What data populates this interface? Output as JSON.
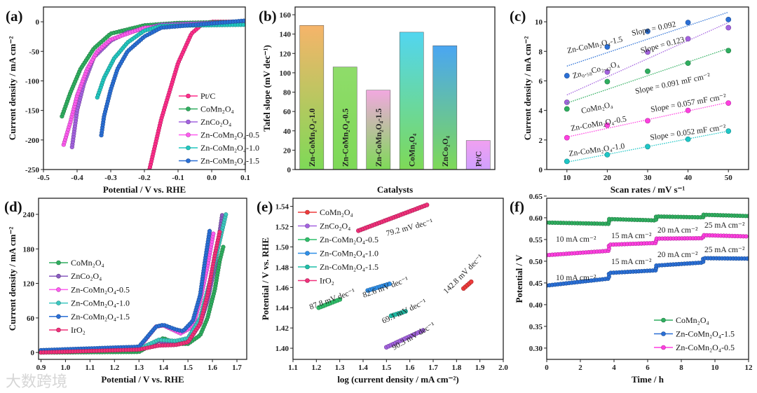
{
  "watermark": "大数跨境",
  "chart_data": [
    {
      "panel": "(a)",
      "type": "line",
      "xlabel": "Potential /  V vs. RHE",
      "ylabel": "Current density / mA cm⁻²",
      "xlim": [
        -0.5,
        0.1
      ],
      "ylim": [
        -250,
        25
      ],
      "xticks": [
        "-0.5",
        "-0.4",
        "-0.3",
        "-0.2",
        "-0.1",
        "0.0",
        "0.1"
      ],
      "yticks": [
        "-250",
        "-200",
        "-150",
        "-100",
        "-50",
        "0"
      ],
      "legend": "bottom-right",
      "series": [
        {
          "name": "Pt/C",
          "color": "#ff2d8a",
          "points": [
            [
              -0.185,
              -250
            ],
            [
              -0.15,
              -165
            ],
            [
              -0.1,
              -70
            ],
            [
              -0.06,
              -20
            ],
            [
              -0.03,
              -5
            ],
            [
              0,
              0
            ],
            [
              0.1,
              0
            ]
          ]
        },
        {
          "name": "CoMn₂O₄",
          "color": "#2fae5f",
          "points": [
            [
              -0.445,
              -160
            ],
            [
              -0.42,
              -120
            ],
            [
              -0.39,
              -80
            ],
            [
              -0.35,
              -45
            ],
            [
              -0.3,
              -20
            ],
            [
              -0.2,
              -6
            ],
            [
              -0.1,
              -2
            ],
            [
              0.1,
              0
            ]
          ]
        },
        {
          "name": "ZnCo₂O₄",
          "color": "#a463e0",
          "points": [
            [
              -0.415,
              -212
            ],
            [
              -0.4,
              -150
            ],
            [
              -0.38,
              -105
            ],
            [
              -0.35,
              -60
            ],
            [
              -0.3,
              -32
            ],
            [
              -0.25,
              -18
            ],
            [
              -0.15,
              -5
            ],
            [
              0.1,
              0
            ]
          ]
        },
        {
          "name": "Zn-CoMn₂O₄-0.5",
          "color": "#ff5cf0",
          "points": [
            [
              -0.44,
              -208
            ],
            [
              -0.42,
              -170
            ],
            [
              -0.4,
              -125
            ],
            [
              -0.37,
              -80
            ],
            [
              -0.34,
              -50
            ],
            [
              -0.3,
              -30
            ],
            [
              -0.2,
              -10
            ],
            [
              0.1,
              -1
            ]
          ]
        },
        {
          "name": "Zn-CoMn₂O₄-1.0",
          "color": "#22c7c0",
          "points": [
            [
              -0.34,
              -128
            ],
            [
              -0.32,
              -95
            ],
            [
              -0.29,
              -62
            ],
            [
              -0.25,
              -35
            ],
            [
              -0.2,
              -15
            ],
            [
              -0.15,
              -7
            ],
            [
              0.1,
              -5
            ]
          ]
        },
        {
          "name": "Zn-CoMn₂O₄-1.5",
          "color": "#2a6fd6",
          "points": [
            [
              -0.328,
              -192
            ],
            [
              -0.32,
              -160
            ],
            [
              -0.3,
              -115
            ],
            [
              -0.28,
              -80
            ],
            [
              -0.25,
              -50
            ],
            [
              -0.2,
              -25
            ],
            [
              -0.15,
              -10
            ],
            [
              0.1,
              2
            ]
          ]
        }
      ]
    },
    {
      "panel": "(b)",
      "type": "bar",
      "xlabel": "Catalysts",
      "ylabel": "Tafel slope (mV dec⁻¹)",
      "ylim": [
        0,
        168
      ],
      "yticks": [
        "0",
        "20",
        "40",
        "60",
        "80",
        "100",
        "120",
        "140",
        "160"
      ],
      "categories": [
        "Zn-CoMn₂O₄-1.0",
        "Zn-CoMn₂O₄-0.5",
        "Zn-CoMn₂O₄-1.5",
        "CoMn₂O₄",
        "ZnCo₂O₄",
        "Pt/C"
      ],
      "values": [
        149,
        106,
        82,
        142,
        128,
        30
      ],
      "colors": [
        "#f6b46a",
        "#8fdc6a",
        "#f2a8e0",
        "#52d6f0",
        "#4aa6f2",
        "#f0a0f0"
      ],
      "base_color": "#7ed957"
    },
    {
      "panel": "(c)",
      "type": "scatter",
      "xlabel": "Scan rates /  mV s⁻¹",
      "ylabel": "Current density / mA cm⁻²",
      "xlim": [
        5,
        55
      ],
      "ylim": [
        0,
        11
      ],
      "xticks": [
        "10",
        "20",
        "30",
        "40",
        "50"
      ],
      "yticks": [
        "0",
        "2",
        "4",
        "6",
        "8",
        "10"
      ],
      "x": [
        10,
        20,
        30,
        40,
        50
      ],
      "series": [
        {
          "name": "Zn-CoMn₂O₄-1.5",
          "color": "#2a6fd6",
          "values": [
            6.35,
            8.3,
            9.35,
            9.95,
            10.15
          ],
          "fit": [
            7.0,
            10.65
          ],
          "slope": "Slope = 0.092"
        },
        {
          "name": "Zn₀.₅₈Co₂.₄₂O₄",
          "color": "#a463e0",
          "values": [
            4.55,
            6.6,
            7.95,
            8.85,
            9.6
          ],
          "fit": [
            5.05,
            9.95
          ],
          "slope": "Slope = 0.123"
        },
        {
          "name": "CoMn₂O₄",
          "color": "#2fae5f",
          "values": [
            4.1,
            5.95,
            6.65,
            7.2,
            8.05
          ],
          "fit": [
            4.5,
            8.2
          ],
          "slope": "Slope = 0.091 mF cm⁻²"
        },
        {
          "name": "Zn-CoMn₂O₄-0.5",
          "color": "#ff3fe0",
          "values": [
            2.15,
            3.0,
            3.3,
            4.0,
            4.5
          ],
          "fit": [
            2.2,
            4.55
          ],
          "slope": "Slope = 0.057 mF cm⁻²"
        },
        {
          "name": "Zn-CoMn₂O₄-1.0",
          "color": "#1fc6c6",
          "values": [
            0.55,
            1.0,
            1.55,
            2.05,
            2.6
          ],
          "fit": [
            0.5,
            2.6
          ],
          "slope": "Slope = 0.052 mF cm⁻²"
        }
      ]
    },
    {
      "panel": "(d)",
      "type": "line",
      "xlabel": "Potential / V vs. RHE",
      "ylabel": "Current density / mA cm⁻²",
      "xlim": [
        0.89,
        1.74
      ],
      "ylim": [
        -12,
        268
      ],
      "xticks": [
        "0.9",
        "1.0",
        "1.1",
        "1.2",
        "1.3",
        "1.4",
        "1.5",
        "1.6",
        "1.7"
      ],
      "yticks": [
        "0",
        "60",
        "120",
        "180",
        "240"
      ],
      "legend": "left",
      "series": [
        {
          "name": "CoMn₂O₄",
          "color": "#2fae5f",
          "points": [
            [
              0.9,
              0
            ],
            [
              1.3,
              1
            ],
            [
              1.38,
              20
            ],
            [
              1.4,
              25
            ],
            [
              1.45,
              15
            ],
            [
              1.5,
              15
            ],
            [
              1.55,
              30
            ],
            [
              1.58,
              60
            ],
            [
              1.61,
              110
            ],
            [
              1.63,
              160
            ],
            [
              1.645,
              185
            ]
          ]
        },
        {
          "name": "ZnCo₂O₄",
          "color": "#8a5cc0",
          "points": [
            [
              0.9,
              2
            ],
            [
              1.3,
              5
            ],
            [
              1.38,
              20
            ],
            [
              1.42,
              15
            ],
            [
              1.5,
              18
            ],
            [
              1.55,
              50
            ],
            [
              1.58,
              90
            ],
            [
              1.61,
              150
            ],
            [
              1.64,
              240
            ]
          ]
        },
        {
          "name": "Zn-CoMn₂O₄-0.5",
          "color": "#ff5cf0",
          "points": [
            [
              0.9,
              3
            ],
            [
              1.3,
              8
            ],
            [
              1.37,
              45
            ],
            [
              1.4,
              47
            ],
            [
              1.47,
              33
            ],
            [
              1.52,
              45
            ],
            [
              1.55,
              90
            ],
            [
              1.58,
              150
            ],
            [
              1.605,
              210
            ]
          ]
        },
        {
          "name": "Zn-CoMn₂O₄-1.0",
          "color": "#3cc8c0",
          "points": [
            [
              0.9,
              2
            ],
            [
              1.3,
              6
            ],
            [
              1.38,
              22
            ],
            [
              1.45,
              20
            ],
            [
              1.5,
              25
            ],
            [
              1.55,
              60
            ],
            [
              1.6,
              140
            ],
            [
              1.655,
              240
            ]
          ]
        },
        {
          "name": "Zn-CoMn₂O₄-1.5",
          "color": "#2a6fd6",
          "points": [
            [
              0.9,
              4
            ],
            [
              1.3,
              10
            ],
            [
              1.37,
              45
            ],
            [
              1.4,
              48
            ],
            [
              1.45,
              40
            ],
            [
              1.48,
              37
            ],
            [
              1.52,
              55
            ],
            [
              1.55,
              100
            ],
            [
              1.57,
              160
            ],
            [
              1.59,
              215
            ]
          ]
        },
        {
          "name": "IrO₂",
          "color": "#f0307a",
          "points": [
            [
              0.9,
              0
            ],
            [
              1.3,
              5
            ],
            [
              1.38,
              12
            ],
            [
              1.45,
              13
            ],
            [
              1.5,
              18
            ],
            [
              1.55,
              50
            ],
            [
              1.58,
              100
            ],
            [
              1.61,
              170
            ],
            [
              1.63,
              210
            ]
          ]
        }
      ]
    },
    {
      "panel": "(e)",
      "type": "line",
      "xlabel": "log (current density / mA cm⁻²)",
      "ylabel": "Potential / V vs. RHE",
      "xlim": [
        1.1,
        2.0
      ],
      "ylim": [
        1.389,
        1.548
      ],
      "xticks": [
        "1.1",
        "1.2",
        "1.3",
        "1.4",
        "1.5",
        "1.6",
        "1.7",
        "1.8",
        "1.9",
        "2.0"
      ],
      "yticks": [
        "1.40",
        "1.42",
        "1.44",
        "1.46",
        "1.48",
        "1.50",
        "1.52",
        "1.54"
      ],
      "legend": "top-left",
      "series": [
        {
          "name": "CoMn₂O₄",
          "color": "#ee3b3b",
          "points": [
            [
              1.83,
              1.459
            ],
            [
              1.87,
              1.467
            ]
          ],
          "label": "142.8 mV dec⁻¹"
        },
        {
          "name": "ZnCo₂O₄",
          "color": "#a463e0",
          "points": [
            [
              1.5,
              1.401
            ],
            [
              1.66,
              1.418
            ]
          ],
          "label": "90.3 mV dec⁻¹"
        },
        {
          "name": "Zn-CoMn₂O₄-0.5",
          "color": "#2fbf6a",
          "points": [
            [
              1.21,
              1.44
            ],
            [
              1.31,
              1.449
            ]
          ],
          "label": "87.8 mV dec⁻¹"
        },
        {
          "name": "Zn-CoMn₂O₄-1.0",
          "color": "#2f8fe8",
          "points": [
            [
              1.42,
              1.457
            ],
            [
              1.52,
              1.464
            ]
          ],
          "label": "82.6 mV dec⁻¹"
        },
        {
          "name": "Zn-CoMn₂O₄-1.5",
          "color": "#1fbfa8",
          "points": [
            [
              1.52,
              1.432
            ],
            [
              1.59,
              1.437
            ]
          ],
          "label": "69.1 mV dec⁻¹"
        },
        {
          "name": "IrO₂",
          "color": "#f0307a",
          "points": [
            [
              1.38,
              1.516
            ],
            [
              1.68,
              1.542
            ]
          ],
          "label": "79.2 mV dec⁻¹"
        }
      ]
    },
    {
      "panel": "(f)",
      "type": "line",
      "xlabel": "Time / h",
      "ylabel": "Potential / V",
      "xlim": [
        0,
        12
      ],
      "ylim": [
        0.274,
        0.645
      ],
      "xticks": [
        "0",
        "2",
        "4",
        "6",
        "8",
        "10",
        "12"
      ],
      "yticks": [
        "0.30",
        "0.35",
        "0.40",
        "0.45",
        "0.50",
        "0.55",
        "0.60",
        "0.65"
      ],
      "legend": "bottom-right",
      "series": [
        {
          "name": "CoMn₂O₄",
          "color": "#2fae5f",
          "points": [
            [
              0,
              0.589
            ],
            [
              3.7,
              0.586
            ],
            [
              3.7,
              0.597
            ],
            [
              6.5,
              0.594
            ],
            [
              6.5,
              0.603
            ],
            [
              9.3,
              0.601
            ],
            [
              9.3,
              0.607
            ],
            [
              12,
              0.604
            ]
          ]
        },
        {
          "name": "Zn-CoMn₂O₄-1.5",
          "color": "#2a6fd6",
          "points": [
            [
              0,
              0.444
            ],
            [
              3.7,
              0.46
            ],
            [
              3.7,
              0.473
            ],
            [
              6.5,
              0.479
            ],
            [
              6.5,
              0.49
            ],
            [
              9.3,
              0.497
            ],
            [
              9.3,
              0.507
            ],
            [
              12,
              0.506
            ]
          ]
        },
        {
          "name": "Zn-CoMn₂O₄-0.5",
          "color": "#ff3fe0",
          "points": [
            [
              0,
              0.514
            ],
            [
              3.7,
              0.524
            ],
            [
              3.7,
              0.538
            ],
            [
              6.5,
              0.542
            ],
            [
              6.5,
              0.552
            ],
            [
              9.3,
              0.553
            ],
            [
              9.3,
              0.56
            ],
            [
              12,
              0.557
            ]
          ]
        }
      ],
      "current_labels": [
        {
          "text": "10 mA cm⁻²",
          "color": "#3cc870"
        },
        {
          "text": "15 mA cm⁻²",
          "color": "#7b6fd6"
        },
        {
          "text": "20 mA cm⁻²",
          "color": "#e84040"
        },
        {
          "text": "25 mA cm⁻²",
          "color": "#20c0c0"
        }
      ]
    }
  ]
}
